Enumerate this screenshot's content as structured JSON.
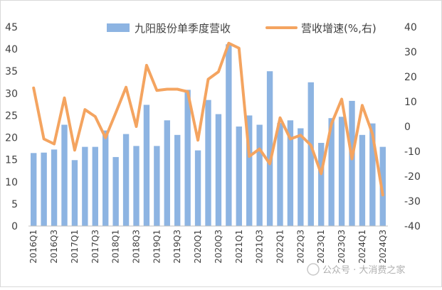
{
  "chart_data": {
    "type": "bar",
    "categories": [
      "2016Q1",
      "2016Q2",
      "2016Q3",
      "2016Q4",
      "2017Q1",
      "2017Q2",
      "2017Q3",
      "2017Q4",
      "2018Q1",
      "2018Q2",
      "2018Q3",
      "2018Q4",
      "2019Q1",
      "2019Q2",
      "2019Q3",
      "2019Q4",
      "2020Q1",
      "2020Q2",
      "2020Q3",
      "2020Q4",
      "2021Q1",
      "2021Q2",
      "2021Q3",
      "2021Q4",
      "2022Q1",
      "2022Q2",
      "2022Q3",
      "2022Q4",
      "2023Q1",
      "2023Q2",
      "2023Q3",
      "2023Q4",
      "2024Q1",
      "2024Q2",
      "2024Q3"
    ],
    "x_tick_labels": [
      "2016Q1",
      "2016Q3",
      "2017Q1",
      "2017Q3",
      "2018Q1",
      "2018Q3",
      "2019Q1",
      "2019Q3",
      "2020Q1",
      "2020Q3",
      "2021Q1",
      "2021Q3",
      "2022Q1",
      "2022Q3",
      "2023Q1",
      "2023Q3",
      "2024Q1",
      "2024Q3"
    ],
    "series": [
      {
        "name": "九阳股份单季度营收",
        "type": "bar",
        "axis": "left",
        "color": "#8DB4E2",
        "values": [
          16.5,
          16.6,
          17.3,
          22.9,
          14.9,
          17.9,
          17.9,
          21.6,
          15.6,
          20.8,
          18.1,
          27.4,
          18.1,
          23.9,
          20.6,
          30.8,
          17.1,
          28.5,
          25.3,
          41.1,
          22.5,
          25.0,
          22.9,
          35.0,
          23.3,
          23.9,
          22.1,
          32.5,
          18.8,
          24.4,
          24.7,
          28.3,
          20.6,
          23.2,
          17.9
        ]
      },
      {
        "name": "营收增速(%,右)",
        "type": "line",
        "axis": "right",
        "color": "#F4A460",
        "values": [
          15.5,
          -5.0,
          -7.0,
          11.5,
          -9.5,
          6.8,
          4.0,
          -4.5,
          5.5,
          15.8,
          0,
          24.6,
          14.5,
          15.0,
          15.0,
          14.0,
          -5.5,
          19.0,
          22.0,
          33.5,
          31.5,
          -12.0,
          -9.0,
          -15.0,
          3.5,
          -5.0,
          -3.5,
          -7.5,
          -19.0,
          1.0,
          11.0,
          -13.0,
          8.5,
          -3.0,
          -27.5
        ]
      }
    ],
    "y_left": {
      "lim": [
        0,
        45
      ],
      "ticks": [
        "0",
        "5",
        "10",
        "15",
        "20",
        "25",
        "30",
        "35",
        "40",
        "45"
      ]
    },
    "y_right": {
      "lim": [
        -40,
        40
      ],
      "ticks": [
        "-40",
        "-30",
        "-20",
        "-10",
        "0",
        "10",
        "20",
        "30",
        "40"
      ]
    },
    "grid": false,
    "legend_position": "top"
  },
  "watermark": {
    "text": "公众号 · 大消费之家"
  }
}
